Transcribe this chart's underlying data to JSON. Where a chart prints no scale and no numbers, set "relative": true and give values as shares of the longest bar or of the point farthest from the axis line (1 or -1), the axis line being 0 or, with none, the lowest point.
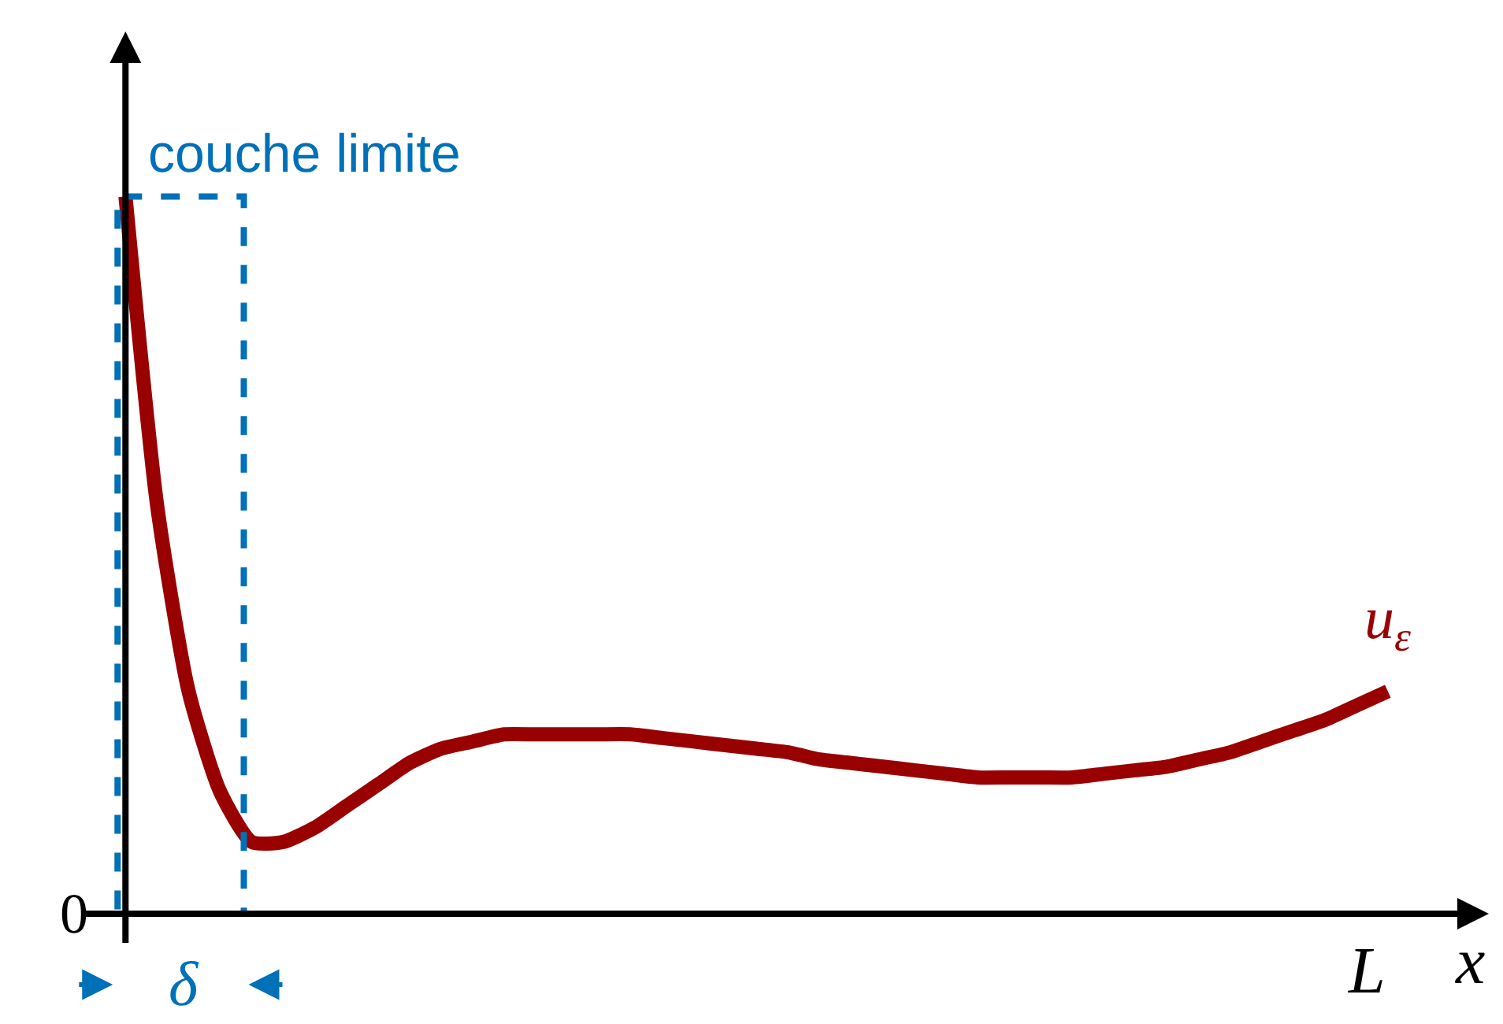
{
  "chart_data": {
    "type": "line",
    "relative": true,
    "xlabel": "x",
    "categories": [
      null,
      null,
      null,
      null,
      null,
      null,
      null,
      null,
      null,
      null,
      null,
      null,
      null,
      null,
      null,
      null,
      null,
      null,
      null,
      null,
      null,
      null,
      null,
      null,
      null,
      null,
      null,
      null,
      null,
      null,
      null,
      null,
      null,
      null,
      null,
      null,
      null,
      null,
      null,
      null,
      null
    ],
    "series": [
      {
        "name": "u$_{ε}$",
        "color": "#990000",
        "values": [
          1.0,
          0.57,
          0.31,
          0.17,
          0.1,
          0.1,
          0.12,
          0.15,
          0.18,
          0.21,
          0.23,
          0.24,
          0.25,
          0.25,
          0.25,
          0.25,
          0.25,
          0.245,
          0.24,
          0.235,
          0.23,
          0.225,
          0.215,
          0.21,
          0.205,
          0.2,
          0.195,
          0.19,
          0.19,
          0.19,
          0.19,
          0.195,
          0.2,
          0.205,
          0.215,
          0.225,
          0.24,
          0.255,
          0.27,
          0.29,
          0.31
        ]
      }
    ],
    "annotations": [
      "0",
      "δ",
      "L",
      "couche limite"
    ],
    "line_style": "solid"
  }
}
